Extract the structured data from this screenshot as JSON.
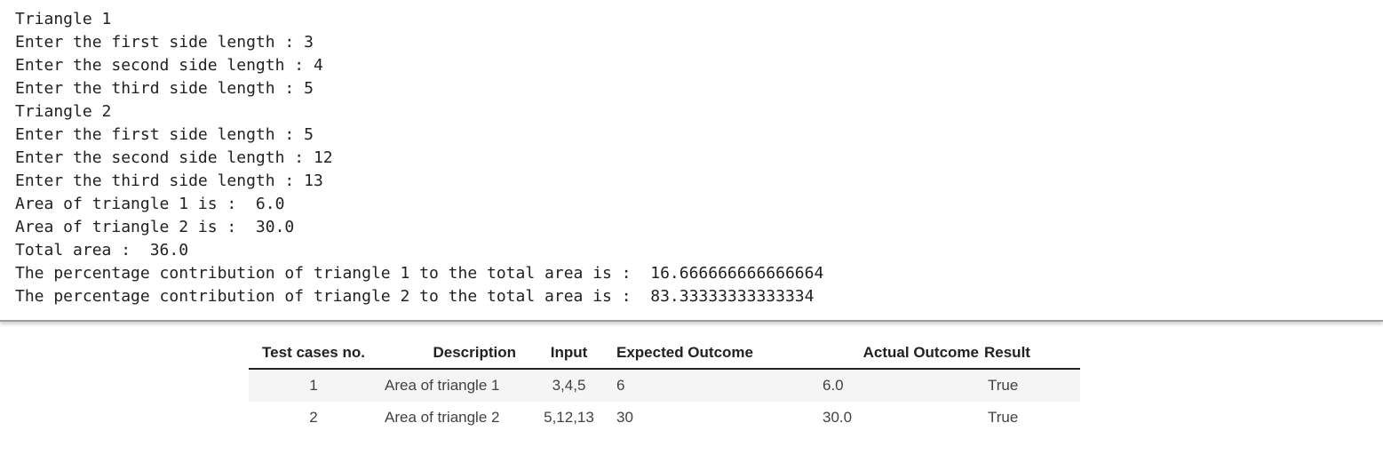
{
  "console": {
    "lines": [
      "Triangle 1",
      "Enter the first side length : 3",
      "Enter the second side length : 4",
      "Enter the third side length : 5",
      "Triangle 2",
      "Enter the first side length : 5",
      "Enter the second side length : 12",
      "Enter the third side length : 13",
      "Area of triangle 1 is :  6.0",
      "Area of triangle 2 is :  30.0",
      "Total area :  36.0",
      "The percentage contribution of triangle 1 to the total area is :  16.666666666666664",
      "The percentage contribution of triangle 2 to the total area is :  83.33333333333334"
    ]
  },
  "table": {
    "headers": [
      "Test cases no.",
      "Description",
      "Input",
      "Expected Outcome",
      "Actual Outcome",
      "Result"
    ],
    "rows": [
      [
        "1",
        "Area of triangle 1",
        "3,4,5",
        "6",
        "6.0",
        "True"
      ],
      [
        "2",
        "Area of triangle 2",
        "5,12,13",
        "30",
        "30.0",
        "True"
      ]
    ]
  }
}
